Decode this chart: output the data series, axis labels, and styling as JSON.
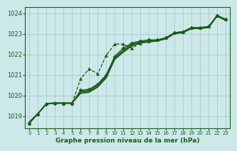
{
  "title": "Graphe pression niveau de la mer (hPa)",
  "bg_color": "#cce8e8",
  "grid_color": "#aacccc",
  "line_color": "#1a5c1a",
  "xlim": [
    -0.5,
    23.5
  ],
  "ylim": [
    1018.4,
    1024.3
  ],
  "yticks": [
    1019,
    1020,
    1021,
    1022,
    1023,
    1024
  ],
  "xticks": [
    0,
    1,
    2,
    3,
    4,
    5,
    6,
    7,
    8,
    9,
    10,
    11,
    12,
    13,
    14,
    15,
    16,
    17,
    18,
    19,
    20,
    21,
    22,
    23
  ],
  "series": [
    {
      "comment": "dashed line with triangle markers - the outlier curve going high in middle",
      "x": [
        0,
        1,
        2,
        3,
        4,
        5,
        6,
        7,
        8,
        9,
        10,
        11,
        12,
        13,
        14,
        15,
        16,
        17,
        18,
        19,
        20,
        21,
        22,
        23
      ],
      "y": [
        1018.65,
        1019.1,
        1019.6,
        1019.65,
        1019.62,
        1019.62,
        1020.8,
        1021.3,
        1021.05,
        1021.95,
        1022.5,
        1022.5,
        1022.3,
        1022.55,
        1022.65,
        1022.7,
        1022.8,
        1023.05,
        1023.1,
        1023.3,
        1023.3,
        1023.35,
        1023.9,
        1023.7
      ],
      "style": "dashed",
      "marker": "^",
      "markersize": 2.8,
      "linewidth": 0.9
    },
    {
      "comment": "solid line with diamond markers - main highlighted line",
      "x": [
        0,
        1,
        2,
        3,
        4,
        5,
        6,
        7,
        8,
        9,
        10,
        11,
        12,
        13,
        14,
        15,
        16,
        17,
        18,
        19,
        20,
        21,
        22,
        23
      ],
      "y": [
        1018.65,
        1019.1,
        1019.58,
        1019.62,
        1019.62,
        1019.62,
        1020.25,
        1020.3,
        1020.55,
        1021.0,
        1021.9,
        1022.3,
        1022.55,
        1022.65,
        1022.7,
        1022.7,
        1022.8,
        1023.05,
        1023.1,
        1023.3,
        1023.3,
        1023.35,
        1023.9,
        1023.7
      ],
      "style": "solid",
      "marker": "D",
      "markersize": 2.5,
      "linewidth": 1.0
    },
    {
      "comment": "solid line 1 - lower cluster",
      "x": [
        0,
        1,
        2,
        3,
        4,
        5,
        6,
        7,
        8,
        9,
        10,
        11,
        12,
        13,
        14,
        15,
        16,
        17,
        18,
        19,
        20,
        21,
        22,
        23
      ],
      "y": [
        1018.68,
        1019.12,
        1019.6,
        1019.62,
        1019.62,
        1019.62,
        1020.1,
        1020.15,
        1020.4,
        1020.85,
        1021.75,
        1022.1,
        1022.4,
        1022.55,
        1022.6,
        1022.65,
        1022.75,
        1023.0,
        1023.05,
        1023.25,
        1023.25,
        1023.3,
        1023.85,
        1023.65
      ],
      "style": "solid",
      "marker": null,
      "markersize": 0,
      "linewidth": 1.0
    },
    {
      "comment": "solid line 2 - middle cluster",
      "x": [
        0,
        1,
        2,
        3,
        4,
        5,
        6,
        7,
        8,
        9,
        10,
        11,
        12,
        13,
        14,
        15,
        16,
        17,
        18,
        19,
        20,
        21,
        22,
        23
      ],
      "y": [
        1018.7,
        1019.12,
        1019.6,
        1019.63,
        1019.63,
        1019.63,
        1020.15,
        1020.2,
        1020.45,
        1020.9,
        1021.8,
        1022.15,
        1022.45,
        1022.57,
        1022.62,
        1022.67,
        1022.77,
        1023.02,
        1023.07,
        1023.27,
        1023.27,
        1023.32,
        1023.87,
        1023.67
      ],
      "style": "solid",
      "marker": null,
      "markersize": 0,
      "linewidth": 1.0
    },
    {
      "comment": "solid line 3 - upper cluster",
      "x": [
        0,
        1,
        2,
        3,
        4,
        5,
        6,
        7,
        8,
        9,
        10,
        11,
        12,
        13,
        14,
        15,
        16,
        17,
        18,
        19,
        20,
        21,
        22,
        23
      ],
      "y": [
        1018.72,
        1019.13,
        1019.61,
        1019.64,
        1019.64,
        1019.64,
        1020.2,
        1020.25,
        1020.5,
        1020.95,
        1021.85,
        1022.2,
        1022.5,
        1022.6,
        1022.65,
        1022.7,
        1022.8,
        1023.05,
        1023.1,
        1023.3,
        1023.3,
        1023.35,
        1023.88,
        1023.68
      ],
      "style": "solid",
      "marker": null,
      "markersize": 0,
      "linewidth": 1.0
    }
  ]
}
